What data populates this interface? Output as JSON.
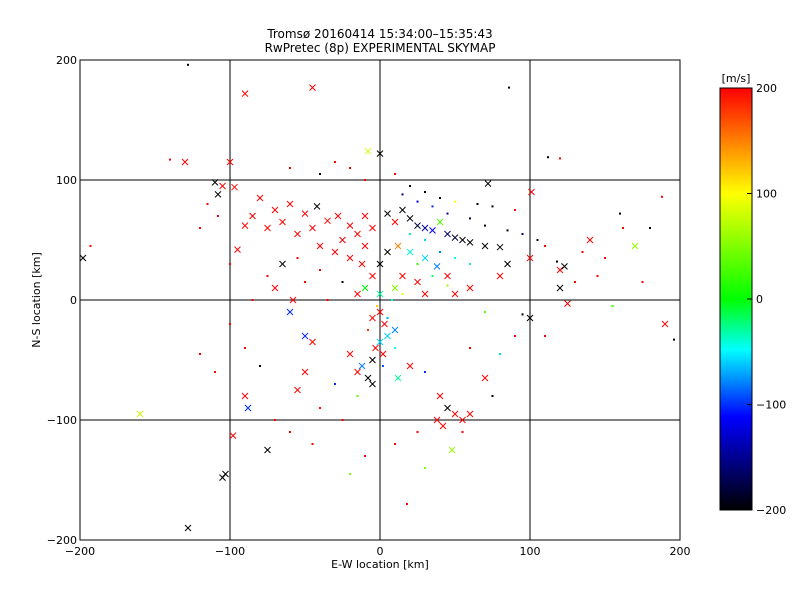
{
  "chart_data": {
    "type": "scatter",
    "title": "Tromsø 20160414 15:34:00–15:35:43",
    "subtitle": "RwPretec (8p) EXPERIMENTAL SKYMAP",
    "xlabel": "E-W location [km]",
    "ylabel": "N-S location [km]",
    "xlim": [
      -200,
      200
    ],
    "ylim": [
      -200,
      200
    ],
    "grid": true,
    "x_ticks": [
      -200,
      -100,
      0,
      100,
      200
    ],
    "y_ticks": [
      -200,
      -100,
      0,
      100,
      200
    ],
    "x_tick_labels": [
      "−200",
      "−100",
      "0",
      "100",
      "200"
    ],
    "y_tick_labels": [
      "−200",
      "−100",
      "0",
      "100",
      "200"
    ],
    "colorbar": {
      "unit_label": "[m/s]",
      "range": [
        -200,
        200
      ],
      "ticks": [
        200,
        100,
        0,
        -100,
        -200
      ],
      "tick_labels": [
        "200",
        "100",
        "0",
        "−100",
        "−200"
      ],
      "colors": [
        "#ff0000",
        "#ffff00",
        "#00ff00",
        "#00ffff",
        "#0000ff",
        "#000000"
      ]
    },
    "points": [
      {
        "x": -128,
        "y": 196,
        "v": -200,
        "m": "dot"
      },
      {
        "x": 86,
        "y": 177,
        "v": -200,
        "m": "dot"
      },
      {
        "x": -45,
        "y": 177,
        "v": 200,
        "m": "x"
      },
      {
        "x": -90,
        "y": 172,
        "v": 200,
        "m": "x"
      },
      {
        "x": -8,
        "y": 124,
        "v": 80,
        "m": "x"
      },
      {
        "x": -130,
        "y": 115,
        "v": 200,
        "m": "x"
      },
      {
        "x": -140,
        "y": 117,
        "v": 200,
        "m": "dot"
      },
      {
        "x": -100,
        "y": 115,
        "v": 200,
        "m": "x"
      },
      {
        "x": 0,
        "y": 122,
        "v": -200,
        "m": "x"
      },
      {
        "x": 120,
        "y": 118,
        "v": 200,
        "m": "dot"
      },
      {
        "x": 112,
        "y": 119,
        "v": -200,
        "m": "dot"
      },
      {
        "x": -110,
        "y": 98,
        "v": -200,
        "m": "x"
      },
      {
        "x": -108,
        "y": 88,
        "v": -200,
        "m": "x"
      },
      {
        "x": -105,
        "y": 95,
        "v": 200,
        "m": "x"
      },
      {
        "x": -97,
        "y": 94,
        "v": 200,
        "m": "x"
      },
      {
        "x": 72,
        "y": 97,
        "v": -200,
        "m": "x"
      },
      {
        "x": 101,
        "y": 90,
        "v": 200,
        "m": "x"
      },
      {
        "x": 188,
        "y": 86,
        "v": 200,
        "m": "dot"
      },
      {
        "x": -80,
        "y": 85,
        "v": 200,
        "m": "x"
      },
      {
        "x": -70,
        "y": 75,
        "v": 200,
        "m": "x"
      },
      {
        "x": -60,
        "y": 80,
        "v": 200,
        "m": "x"
      },
      {
        "x": -50,
        "y": 72,
        "v": 200,
        "m": "x"
      },
      {
        "x": -42,
        "y": 78,
        "v": -200,
        "m": "x"
      },
      {
        "x": -35,
        "y": 66,
        "v": 200,
        "m": "x"
      },
      {
        "x": -28,
        "y": 70,
        "v": 200,
        "m": "x"
      },
      {
        "x": -20,
        "y": 62,
        "v": 200,
        "m": "x"
      },
      {
        "x": -15,
        "y": 55,
        "v": 200,
        "m": "x"
      },
      {
        "x": -10,
        "y": 70,
        "v": 200,
        "m": "x"
      },
      {
        "x": -5,
        "y": 60,
        "v": 200,
        "m": "x"
      },
      {
        "x": -25,
        "y": 50,
        "v": 200,
        "m": "x"
      },
      {
        "x": -40,
        "y": 45,
        "v": 200,
        "m": "x"
      },
      {
        "x": -55,
        "y": 55,
        "v": 200,
        "m": "x"
      },
      {
        "x": -65,
        "y": 65,
        "v": 200,
        "m": "x"
      },
      {
        "x": -75,
        "y": 60,
        "v": 200,
        "m": "x"
      },
      {
        "x": -85,
        "y": 70,
        "v": 200,
        "m": "x"
      },
      {
        "x": -90,
        "y": 62,
        "v": 200,
        "m": "x"
      },
      {
        "x": -95,
        "y": 42,
        "v": 200,
        "m": "x"
      },
      {
        "x": -45,
        "y": 60,
        "v": 200,
        "m": "x"
      },
      {
        "x": -30,
        "y": 40,
        "v": 200,
        "m": "x"
      },
      {
        "x": -20,
        "y": 35,
        "v": 200,
        "m": "x"
      },
      {
        "x": -10,
        "y": 45,
        "v": 200,
        "m": "x"
      },
      {
        "x": -12,
        "y": 30,
        "v": 200,
        "m": "x"
      },
      {
        "x": 5,
        "y": 72,
        "v": -200,
        "m": "x"
      },
      {
        "x": 10,
        "y": 65,
        "v": 200,
        "m": "x"
      },
      {
        "x": 15,
        "y": 75,
        "v": -200,
        "m": "x"
      },
      {
        "x": 20,
        "y": 68,
        "v": -200,
        "m": "x"
      },
      {
        "x": 25,
        "y": 62,
        "v": -180,
        "m": "x"
      },
      {
        "x": 30,
        "y": 60,
        "v": -150,
        "m": "x"
      },
      {
        "x": 35,
        "y": 58,
        "v": -120,
        "m": "x"
      },
      {
        "x": 45,
        "y": 55,
        "v": -160,
        "m": "x"
      },
      {
        "x": 50,
        "y": 52,
        "v": -180,
        "m": "x"
      },
      {
        "x": 55,
        "y": 50,
        "v": -200,
        "m": "x"
      },
      {
        "x": 60,
        "y": 48,
        "v": -200,
        "m": "x"
      },
      {
        "x": 70,
        "y": 45,
        "v": -200,
        "m": "x"
      },
      {
        "x": 80,
        "y": 44,
        "v": -200,
        "m": "x"
      },
      {
        "x": 40,
        "y": 65,
        "v": 30,
        "m": "x"
      },
      {
        "x": 20,
        "y": 40,
        "v": -40,
        "m": "x"
      },
      {
        "x": 30,
        "y": 35,
        "v": -60,
        "m": "x"
      },
      {
        "x": 38,
        "y": 28,
        "v": -80,
        "m": "x"
      },
      {
        "x": 12,
        "y": 45,
        "v": 150,
        "m": "x"
      },
      {
        "x": 5,
        "y": 40,
        "v": -200,
        "m": "x"
      },
      {
        "x": 0,
        "y": 30,
        "v": -200,
        "m": "x"
      },
      {
        "x": -5,
        "y": 20,
        "v": 200,
        "m": "x"
      },
      {
        "x": 15,
        "y": 20,
        "v": 200,
        "m": "x"
      },
      {
        "x": 25,
        "y": 15,
        "v": 200,
        "m": "x"
      },
      {
        "x": 10,
        "y": 10,
        "v": 50,
        "m": "x"
      },
      {
        "x": -10,
        "y": 10,
        "v": 0,
        "m": "x"
      },
      {
        "x": -15,
        "y": 5,
        "v": 200,
        "m": "x"
      },
      {
        "x": 0,
        "y": 5,
        "v": -30,
        "m": "x"
      },
      {
        "x": 30,
        "y": 5,
        "v": 200,
        "m": "x"
      },
      {
        "x": 45,
        "y": 20,
        "v": 200,
        "m": "x"
      },
      {
        "x": 50,
        "y": 5,
        "v": 200,
        "m": "x"
      },
      {
        "x": 60,
        "y": 10,
        "v": 200,
        "m": "x"
      },
      {
        "x": 80,
        "y": 20,
        "v": 200,
        "m": "x"
      },
      {
        "x": 85,
        "y": 30,
        "v": -200,
        "m": "x"
      },
      {
        "x": 100,
        "y": 35,
        "v": 200,
        "m": "x"
      },
      {
        "x": 120,
        "y": 25,
        "v": 200,
        "m": "x"
      },
      {
        "x": 123,
        "y": 28,
        "v": -200,
        "m": "x"
      },
      {
        "x": 120,
        "y": 10,
        "v": -200,
        "m": "x"
      },
      {
        "x": 125,
        "y": -3,
        "v": 200,
        "m": "x"
      },
      {
        "x": 140,
        "y": 50,
        "v": 200,
        "m": "x"
      },
      {
        "x": 170,
        "y": 45,
        "v": 60,
        "m": "x"
      },
      {
        "x": 162,
        "y": 60,
        "v": 200,
        "m": "dot"
      },
      {
        "x": 150,
        "y": 35,
        "v": 200,
        "m": "dot"
      },
      {
        "x": 190,
        "y": -20,
        "v": 200,
        "m": "x"
      },
      {
        "x": 196,
        "y": -33,
        "v": -200,
        "m": "dot"
      },
      {
        "x": 100,
        "y": -15,
        "v": -200,
        "m": "x"
      },
      {
        "x": 95,
        "y": -12,
        "v": -200,
        "m": "dot"
      },
      {
        "x": -198,
        "y": 35,
        "v": -200,
        "m": "x"
      },
      {
        "x": -193,
        "y": 45,
        "v": 200,
        "m": "dot"
      },
      {
        "x": -160,
        "y": -95,
        "v": 80,
        "m": "x"
      },
      {
        "x": -128,
        "y": -190,
        "v": -200,
        "m": "x"
      },
      {
        "x": -103,
        "y": -145,
        "v": -200,
        "m": "x"
      },
      {
        "x": -105,
        "y": -148,
        "v": -200,
        "m": "x"
      },
      {
        "x": -98,
        "y": -113,
        "v": 200,
        "m": "x"
      },
      {
        "x": -90,
        "y": -80,
        "v": 200,
        "m": "x"
      },
      {
        "x": -88,
        "y": -90,
        "v": -100,
        "m": "x"
      },
      {
        "x": -75,
        "y": -125,
        "v": -200,
        "m": "x"
      },
      {
        "x": -55,
        "y": -75,
        "v": 200,
        "m": "x"
      },
      {
        "x": -50,
        "y": -60,
        "v": 200,
        "m": "x"
      },
      {
        "x": -45,
        "y": -35,
        "v": 200,
        "m": "x"
      },
      {
        "x": -50,
        "y": -30,
        "v": -100,
        "m": "x"
      },
      {
        "x": -15,
        "y": -60,
        "v": 200,
        "m": "x"
      },
      {
        "x": -12,
        "y": -55,
        "v": -80,
        "m": "x"
      },
      {
        "x": -20,
        "y": -45,
        "v": 200,
        "m": "x"
      },
      {
        "x": -5,
        "y": -50,
        "v": -200,
        "m": "x"
      },
      {
        "x": -3,
        "y": -40,
        "v": 200,
        "m": "x"
      },
      {
        "x": 0,
        "y": -35,
        "v": -60,
        "m": "x"
      },
      {
        "x": 5,
        "y": -30,
        "v": -60,
        "m": "x"
      },
      {
        "x": 10,
        "y": -25,
        "v": -80,
        "m": "x"
      },
      {
        "x": 3,
        "y": -20,
        "v": 200,
        "m": "x"
      },
      {
        "x": -5,
        "y": -15,
        "v": 200,
        "m": "x"
      },
      {
        "x": 0,
        "y": -10,
        "v": 200,
        "m": "x"
      },
      {
        "x": 2,
        "y": -45,
        "v": 200,
        "m": "x"
      },
      {
        "x": -8,
        "y": -65,
        "v": -200,
        "m": "x"
      },
      {
        "x": -5,
        "y": -70,
        "v": -200,
        "m": "x"
      },
      {
        "x": 12,
        "y": -65,
        "v": -30,
        "m": "x"
      },
      {
        "x": 20,
        "y": -55,
        "v": 200,
        "m": "x"
      },
      {
        "x": 40,
        "y": -80,
        "v": 200,
        "m": "x"
      },
      {
        "x": 45,
        "y": -90,
        "v": -200,
        "m": "x"
      },
      {
        "x": 50,
        "y": -95,
        "v": 200,
        "m": "x"
      },
      {
        "x": 55,
        "y": -100,
        "v": 200,
        "m": "x"
      },
      {
        "x": 60,
        "y": -95,
        "v": 200,
        "m": "x"
      },
      {
        "x": 38,
        "y": -100,
        "v": 200,
        "m": "x"
      },
      {
        "x": 42,
        "y": -105,
        "v": 200,
        "m": "x"
      },
      {
        "x": 48,
        "y": -125,
        "v": 60,
        "m": "x"
      },
      {
        "x": 55,
        "y": -110,
        "v": 200,
        "m": "dot"
      },
      {
        "x": 70,
        "y": -65,
        "v": 200,
        "m": "x"
      },
      {
        "x": 75,
        "y": -80,
        "v": -200,
        "m": "dot"
      },
      {
        "x": 18,
        "y": -170,
        "v": 200,
        "m": "dot"
      },
      {
        "x": 30,
        "y": -140,
        "v": 50,
        "m": "dot"
      },
      {
        "x": -20,
        "y": -145,
        "v": 50,
        "m": "dot"
      },
      {
        "x": -65,
        "y": 30,
        "v": -200,
        "m": "x"
      },
      {
        "x": -70,
        "y": 10,
        "v": 200,
        "m": "x"
      },
      {
        "x": -58,
        "y": 0,
        "v": 200,
        "m": "x"
      },
      {
        "x": -60,
        "y": -10,
        "v": -100,
        "m": "x"
      },
      {
        "x": -120,
        "y": -45,
        "v": 200,
        "m": "dot"
      },
      {
        "x": -110,
        "y": -60,
        "v": 200,
        "m": "dot"
      },
      {
        "x": -108,
        "y": 70,
        "v": 200,
        "m": "dot"
      },
      {
        "x": -60,
        "y": 110,
        "v": 200,
        "m": "dot"
      },
      {
        "x": -40,
        "y": 105,
        "v": -200,
        "m": "dot"
      },
      {
        "x": -30,
        "y": 115,
        "v": 200,
        "m": "dot"
      },
      {
        "x": -20,
        "y": 110,
        "v": 200,
        "m": "dot"
      },
      {
        "x": -10,
        "y": 100,
        "v": 200,
        "m": "dot"
      },
      {
        "x": 10,
        "y": 105,
        "v": 200,
        "m": "dot"
      },
      {
        "x": 20,
        "y": 95,
        "v": -200,
        "m": "dot"
      },
      {
        "x": 30,
        "y": 90,
        "v": -200,
        "m": "dot"
      },
      {
        "x": 40,
        "y": 85,
        "v": -200,
        "m": "dot"
      },
      {
        "x": 50,
        "y": 82,
        "v": 100,
        "m": "dot"
      },
      {
        "x": 65,
        "y": 80,
        "v": -200,
        "m": "dot"
      },
      {
        "x": 75,
        "y": 78,
        "v": -200,
        "m": "dot"
      },
      {
        "x": 90,
        "y": 75,
        "v": 200,
        "m": "dot"
      },
      {
        "x": 15,
        "y": 88,
        "v": -150,
        "m": "dot"
      },
      {
        "x": 25,
        "y": 82,
        "v": -120,
        "m": "dot"
      },
      {
        "x": 35,
        "y": 78,
        "v": -100,
        "m": "dot"
      },
      {
        "x": 45,
        "y": 72,
        "v": -140,
        "m": "dot"
      },
      {
        "x": 60,
        "y": 68,
        "v": -180,
        "m": "dot"
      },
      {
        "x": 70,
        "y": 62,
        "v": -200,
        "m": "dot"
      },
      {
        "x": 85,
        "y": 58,
        "v": -200,
        "m": "dot"
      },
      {
        "x": 95,
        "y": 55,
        "v": -160,
        "m": "dot"
      },
      {
        "x": 105,
        "y": 50,
        "v": -200,
        "m": "dot"
      },
      {
        "x": 110,
        "y": 45,
        "v": 200,
        "m": "dot"
      },
      {
        "x": 20,
        "y": 55,
        "v": -30,
        "m": "dot"
      },
      {
        "x": 30,
        "y": 50,
        "v": -60,
        "m": "dot"
      },
      {
        "x": 40,
        "y": 40,
        "v": -80,
        "m": "dot"
      },
      {
        "x": 50,
        "y": 35,
        "v": -50,
        "m": "dot"
      },
      {
        "x": 60,
        "y": 30,
        "v": -30,
        "m": "dot"
      },
      {
        "x": 25,
        "y": 30,
        "v": 20,
        "m": "dot"
      },
      {
        "x": 35,
        "y": 20,
        "v": -20,
        "m": "dot"
      },
      {
        "x": 45,
        "y": 12,
        "v": 60,
        "m": "dot"
      },
      {
        "x": 15,
        "y": 5,
        "v": 90,
        "m": "dot"
      },
      {
        "x": 8,
        "y": 0,
        "v": -40,
        "m": "dot"
      },
      {
        "x": -2,
        "y": -5,
        "v": 120,
        "m": "dot"
      },
      {
        "x": 5,
        "y": -15,
        "v": -70,
        "m": "dot"
      },
      {
        "x": -8,
        "y": -25,
        "v": 180,
        "m": "dot"
      },
      {
        "x": 2,
        "y": -55,
        "v": -90,
        "m": "dot"
      },
      {
        "x": 10,
        "y": -40,
        "v": -50,
        "m": "dot"
      },
      {
        "x": -15,
        "y": -80,
        "v": 40,
        "m": "dot"
      },
      {
        "x": -30,
        "y": -70,
        "v": -100,
        "m": "dot"
      },
      {
        "x": -40,
        "y": -90,
        "v": 200,
        "m": "dot"
      },
      {
        "x": -60,
        "y": -110,
        "v": 200,
        "m": "dot"
      },
      {
        "x": -70,
        "y": -100,
        "v": 200,
        "m": "dot"
      },
      {
        "x": -80,
        "y": -55,
        "v": -200,
        "m": "dot"
      },
      {
        "x": -90,
        "y": -40,
        "v": 200,
        "m": "dot"
      },
      {
        "x": -100,
        "y": -20,
        "v": 200,
        "m": "dot"
      },
      {
        "x": -85,
        "y": 0,
        "v": 200,
        "m": "dot"
      },
      {
        "x": -75,
        "y": 20,
        "v": 200,
        "m": "dot"
      },
      {
        "x": -50,
        "y": 15,
        "v": 200,
        "m": "dot"
      },
      {
        "x": -35,
        "y": 0,
        "v": 200,
        "m": "dot"
      },
      {
        "x": -25,
        "y": 15,
        "v": -200,
        "m": "dot"
      },
      {
        "x": -40,
        "y": 25,
        "v": 200,
        "m": "dot"
      },
      {
        "x": -55,
        "y": 35,
        "v": 200,
        "m": "dot"
      },
      {
        "x": -100,
        "y": 30,
        "v": 200,
        "m": "dot"
      },
      {
        "x": -120,
        "y": 60,
        "v": 200,
        "m": "dot"
      },
      {
        "x": -115,
        "y": 80,
        "v": 200,
        "m": "dot"
      },
      {
        "x": 70,
        "y": -10,
        "v": 40,
        "m": "dot"
      },
      {
        "x": 90,
        "y": -30,
        "v": 200,
        "m": "dot"
      },
      {
        "x": 80,
        "y": -45,
        "v": -60,
        "m": "dot"
      },
      {
        "x": 110,
        "y": -30,
        "v": 200,
        "m": "dot"
      },
      {
        "x": 130,
        "y": 15,
        "v": 200,
        "m": "dot"
      },
      {
        "x": 145,
        "y": 20,
        "v": 200,
        "m": "dot"
      },
      {
        "x": 155,
        "y": -5,
        "v": 20,
        "m": "dot"
      },
      {
        "x": 175,
        "y": 15,
        "v": 200,
        "m": "dot"
      },
      {
        "x": 180,
        "y": 60,
        "v": -200,
        "m": "dot"
      },
      {
        "x": 118,
        "y": 32,
        "v": -200,
        "m": "dot"
      },
      {
        "x": 135,
        "y": 40,
        "v": 200,
        "m": "dot"
      },
      {
        "x": 160,
        "y": 72,
        "v": -200,
        "m": "dot"
      },
      {
        "x": 60,
        "y": -40,
        "v": 200,
        "m": "dot"
      },
      {
        "x": 30,
        "y": -60,
        "v": -100,
        "m": "dot"
      },
      {
        "x": 25,
        "y": -110,
        "v": 200,
        "m": "dot"
      },
      {
        "x": 10,
        "y": -120,
        "v": 200,
        "m": "dot"
      },
      {
        "x": -10,
        "y": -130,
        "v": 200,
        "m": "dot"
      },
      {
        "x": -45,
        "y": -120,
        "v": 200,
        "m": "dot"
      },
      {
        "x": -25,
        "y": -100,
        "v": 200,
        "m": "dot"
      }
    ]
  }
}
